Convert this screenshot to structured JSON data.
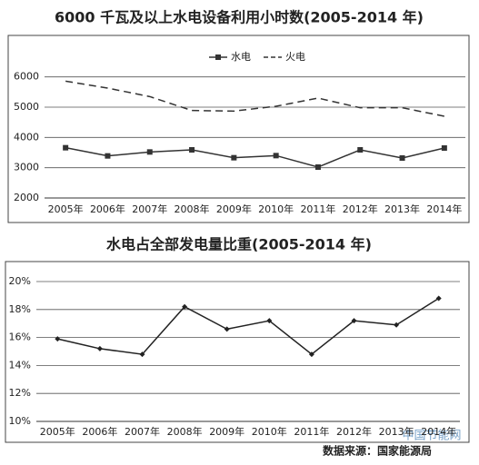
{
  "charts": [
    {
      "chart_data": {
        "type": "line",
        "title": "6000 千瓦及以上水电设备利用小时数(2005-2014 年)",
        "categories": [
          "2005年",
          "2006年",
          "2007年",
          "2008年",
          "2009年",
          "2010年",
          "2011年",
          "2012年",
          "2013年",
          "2014年"
        ],
        "series": [
          {
            "name": "水电",
            "color": "#333333",
            "marker": "square",
            "dash": false,
            "values": [
              3660,
              3390,
              3520,
              3590,
              3330,
              3400,
              3020,
              3590,
              3320,
              3650
            ]
          },
          {
            "name": "火电",
            "color": "#333333",
            "marker": "none",
            "dash": true,
            "values": [
              5860,
              5630,
              5350,
              4890,
              4870,
              5030,
              5300,
              4980,
              4980,
              4700
            ]
          }
        ],
        "ylim": [
          2000,
          6500
        ],
        "yticks": [
          2000,
          3000,
          4000,
          5000,
          6000
        ],
        "grid": true,
        "legend": "top"
      }
    },
    {
      "chart_data": {
        "type": "line",
        "title": "水电占全部发电量比重(2005-2014 年)",
        "categories": [
          "2005年",
          "2006年",
          "2007年",
          "2008年",
          "2009年",
          "2010年",
          "2011年",
          "2012年",
          "2013年",
          "2014年"
        ],
        "series": [
          {
            "name": null,
            "color": "#222222",
            "marker": "diamond",
            "dash": false,
            "values": [
              15.9,
              15.2,
              14.8,
              18.2,
              16.6,
              17.2,
              14.8,
              17.2,
              16.9,
              18.8
            ]
          }
        ],
        "ylim": [
          10,
          20
        ],
        "yticks": [
          {
            "value": 10,
            "label": "10%"
          },
          {
            "value": 12,
            "label": "12%"
          },
          {
            "value": 14,
            "label": "14%"
          },
          {
            "value": 16,
            "label": "16%"
          },
          {
            "value": 18,
            "label": "18%"
          },
          {
            "value": 20,
            "label": "20%"
          }
        ],
        "grid": true
      }
    }
  ],
  "source": "数据来源：国家能源局",
  "watermark": "中国节能网"
}
